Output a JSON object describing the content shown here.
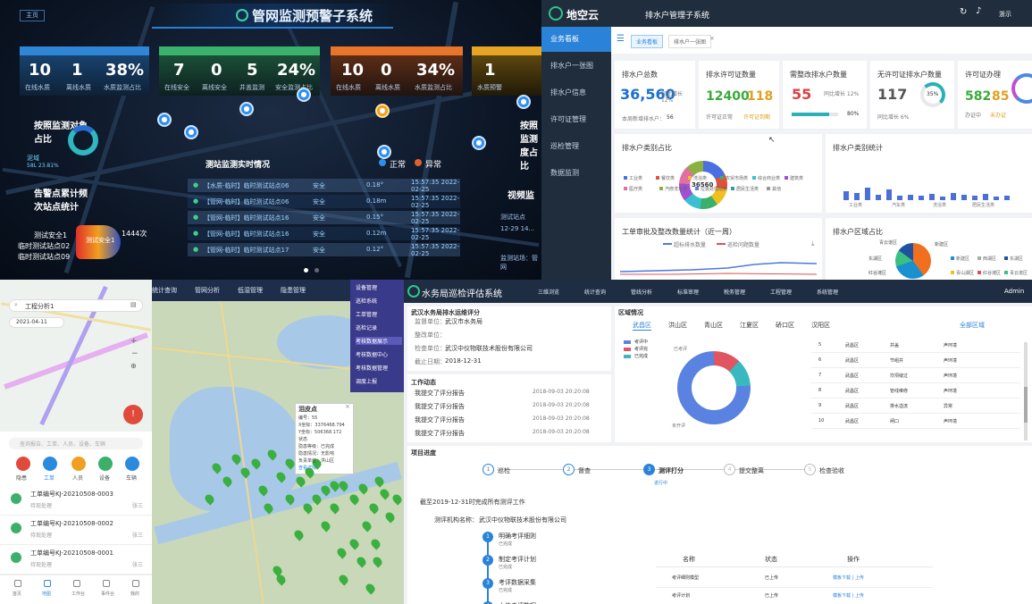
{
  "q1": {
    "title": "管网监测预警子系统",
    "home": "主页",
    "kpis": [
      {
        "nums": [
          "10",
          "1",
          "38%"
        ],
        "labels": [
          "在线水质",
          "离线水质",
          "水质监测占比"
        ],
        "color": "#2f86d6"
      },
      {
        "nums": [
          "7",
          "0",
          "5",
          "24%"
        ],
        "labels": [
          "在线安全",
          "离线安全",
          "井盖监测",
          "安全监测占比"
        ],
        "color": "#3bb26b"
      },
      {
        "nums": [
          "10",
          "0",
          "34%"
        ],
        "labels": [
          "在线水质",
          "离线水质",
          "水质监测占比"
        ],
        "color": "#e9752b"
      },
      {
        "nums": [
          "1"
        ],
        "labels": [
          "水质预警"
        ],
        "color": "#e6a522"
      }
    ],
    "left": {
      "h1": "按照监测对象占比",
      "legend1": "泥域",
      "legend2": "58L 23.81%",
      "h2": "告警点累计频次站点统计",
      "c1": "测试安全1",
      "c2": "临时测试站点02",
      "c3": "临时测试站点09",
      "max": "1444次",
      "ring": "测试安全1"
    },
    "right": {
      "h1": "按照监测度占比",
      "h2": "视频监",
      "v1": "测试站点",
      "v2": "12-29 14...",
      "v3": "监测站场：管网"
    },
    "realtime": {
      "title": "测站监测实时情况",
      "normal": "正常",
      "abnormal": "异常",
      "rows": [
        {
          "name": "【水质-临时】临时测试站点06",
          "status": "安全",
          "val": "0.18°",
          "time": "15:57:35 2022-02-25"
        },
        {
          "name": "【管网-临时】临时测试站点06",
          "status": "安全",
          "val": "0.18m",
          "time": "15:57:35 2022-02-25"
        },
        {
          "name": "【管网-临时】临时测试站点16",
          "status": "安全",
          "val": "0.15°",
          "time": "15:57:35 2022-02-25"
        },
        {
          "name": "【管网-临时】临时测试站点16",
          "status": "安全",
          "val": "0.12m",
          "time": "15:57:35 2022-02-25"
        },
        {
          "name": "【管网-临时】临时测试站点17",
          "status": "安全",
          "val": "0.12°",
          "time": "15:57:35 2022-02-25"
        }
      ]
    }
  },
  "q2": {
    "logo": "地空云",
    "title": "排水户管理子系统",
    "user": "浙示",
    "menu": [
      "业务看板",
      "排水户一张图",
      "排水户信息",
      "许可证管理",
      "巡检管理",
      "数据监测"
    ],
    "tabs": [
      "业务看板",
      "排水户一张图"
    ],
    "c1": {
      "t": "排水户总数",
      "big": "36,560",
      "ratio": "同比增长 12%",
      "sub": "本周新增排水户：",
      "subv": "56"
    },
    "c2": {
      "t": "排水许可证数量",
      "a": "12400",
      "b": "118",
      "la": "许可证正常",
      "lb": "许可证到期"
    },
    "c3": {
      "t": "需整改排水户数量",
      "big": "55",
      "ratio": "同比增长 12%",
      "pct": "80%"
    },
    "c4": {
      "t": "无许可证排水户数量",
      "big": "117",
      "ratio": "同比增长 6%",
      "ring": "35%"
    },
    "c5": {
      "t": "许可证办理",
      "a": "582",
      "b": "85",
      "la": "办证中",
      "lb": "未办证"
    },
    "p1": {
      "t": "排水户类别占比",
      "center": "36560",
      "legend": [
        "工业类",
        "餐饮类",
        "洗浴类",
        "农贸市场类",
        "综合商业类",
        "建筑类",
        "医疗类",
        "汽修洗车类",
        "垃圾处理站类",
        "居民生活类",
        "其他"
      ]
    },
    "p2": {
      "t": "排水户类别统计",
      "x": [
        "工业类",
        "汽车类",
        "洗浴类",
        "居民生活类"
      ]
    },
    "p3": {
      "t": "工单审批及整改数量统计（近一周）",
      "l1": "超标排水数量",
      "l2": "巡检问题数量"
    },
    "p4": {
      "t": "排水户区域占比",
      "legend": [
        "新建区",
        "西湖区",
        "东湖区",
        "青山湖区",
        "红谷滩区",
        "青云谱区"
      ],
      "labels": [
        "新建区",
        "青云谱区",
        "东湖区",
        "红谷滩区"
      ]
    }
  },
  "q3": {
    "search": "工程分析1",
    "date": "2021-04-11",
    "hint": "查询报告、工单、人员、设备、车辆",
    "icons": [
      "隐患",
      "工单",
      "人员",
      "设备",
      "车辆"
    ],
    "items": [
      {
        "t": "工单编号KJ-20210508-0003",
        "s": "待现处理",
        "m": "张三"
      },
      {
        "t": "工单编号KJ-20210508-0002",
        "s": "待现处理",
        "m": "张三"
      },
      {
        "t": "工单编号KJ-20210508-0001",
        "s": "待现处理",
        "m": "张三"
      }
    ],
    "nav": [
      "首页",
      "地图",
      "工作台",
      "事件台",
      "我的"
    ]
  },
  "q4": {
    "menu": [
      "统计查询",
      "管网分析",
      "低湿管理",
      "隐患管理"
    ],
    "dropdown": [
      "设备管理",
      "巡检系统",
      "工单管理",
      "巡检记录",
      "考核数据展示",
      "考核数据中心",
      "考核数据管理",
      "调度上报"
    ],
    "popup": {
      "title": "泪皮点",
      "lines": [
        "编号：55",
        "X坐标：3376468.794",
        "Y坐标：506368.172",
        "状态",
        "隐患等级：已完成",
        "隐患情况：无影响",
        "负责单位：洪山区",
        "查看详情"
      ]
    }
  },
  "q5": {
    "title": "水务局巡检评估系统",
    "user": "Admin",
    "menu": [
      "三维浏览",
      "统计查询",
      "管线分析",
      "标准审理",
      "税务管理",
      "工程管理",
      "系统管理"
    ],
    "info": {
      "h": "武汉水务局排水运维评分",
      "rows": [
        [
          "监督单位：",
          "武汉市水务局"
        ],
        [
          "整改单位：",
          ""
        ],
        [
          "检查单位：",
          "武汉中仪物联技术股份有限公司"
        ],
        [
          "截止日期：",
          "2018-12-31"
        ]
      ]
    },
    "work": {
      "h": "工作动态",
      "rows": [
        [
          "我提交了评分报告",
          "2018-09-03 20:20:08"
        ],
        [
          "我提交了评分报告",
          "2018-09-03 20:20:08"
        ],
        [
          "我提交了评分报告",
          "2018-09-03 20:20:08"
        ],
        [
          "我提交了评分报告",
          "2018-09-03 20:20:08"
        ]
      ]
    },
    "region": {
      "h": "区域情况",
      "tabs": [
        "武昌区",
        "洪山区",
        "青山区",
        "江夏区",
        "硚口区",
        "汉阳区"
      ],
      "all": "全部区域",
      "legend": [
        "考评中",
        "考评完",
        "已完成"
      ],
      "l1": "已考评",
      "l2": "未开评",
      "rows": [
        [
          "5",
          "武昌区",
          "井盖",
          "声环境"
        ],
        [
          "6",
          "武昌区",
          "节组井",
          "声环境"
        ],
        [
          "7",
          "武昌区",
          "坎坝缝过",
          "声环境"
        ],
        [
          "8",
          "武昌区",
          "管线维修",
          "声环境"
        ],
        [
          "9",
          "武昌区",
          "排水溢流",
          "异常"
        ],
        [
          "10",
          "武昌区",
          "闸口",
          "声环境"
        ]
      ]
    },
    "progress": {
      "h": "项目进度",
      "steps": [
        "巡检",
        "督查",
        "测评打分",
        "提交整离",
        "检查验收"
      ],
      "sub": "进行中",
      "tip": "截至2019-12-31时完成所有测评工作",
      "org": "测评机构名称：",
      "orgv": "武汉中仪物联技术股份有限公司",
      "tl": [
        {
          "t": "明确考评细则",
          "s": "已完成"
        },
        {
          "t": "制定考评计划",
          "s": "已完成"
        },
        {
          "t": "考评数据采集",
          "s": "已完成"
        },
        {
          "t": "上传考评数据",
          "s": "已完成"
        }
      ],
      "th": [
        "名称",
        "状态",
        "操作"
      ],
      "trs": [
        [
          "考评细则模型",
          "已上传",
          "模板下载 | 上传"
        ],
        [
          "考评计划",
          "已上传",
          "模板下载 | 上传"
        ]
      ]
    }
  }
}
